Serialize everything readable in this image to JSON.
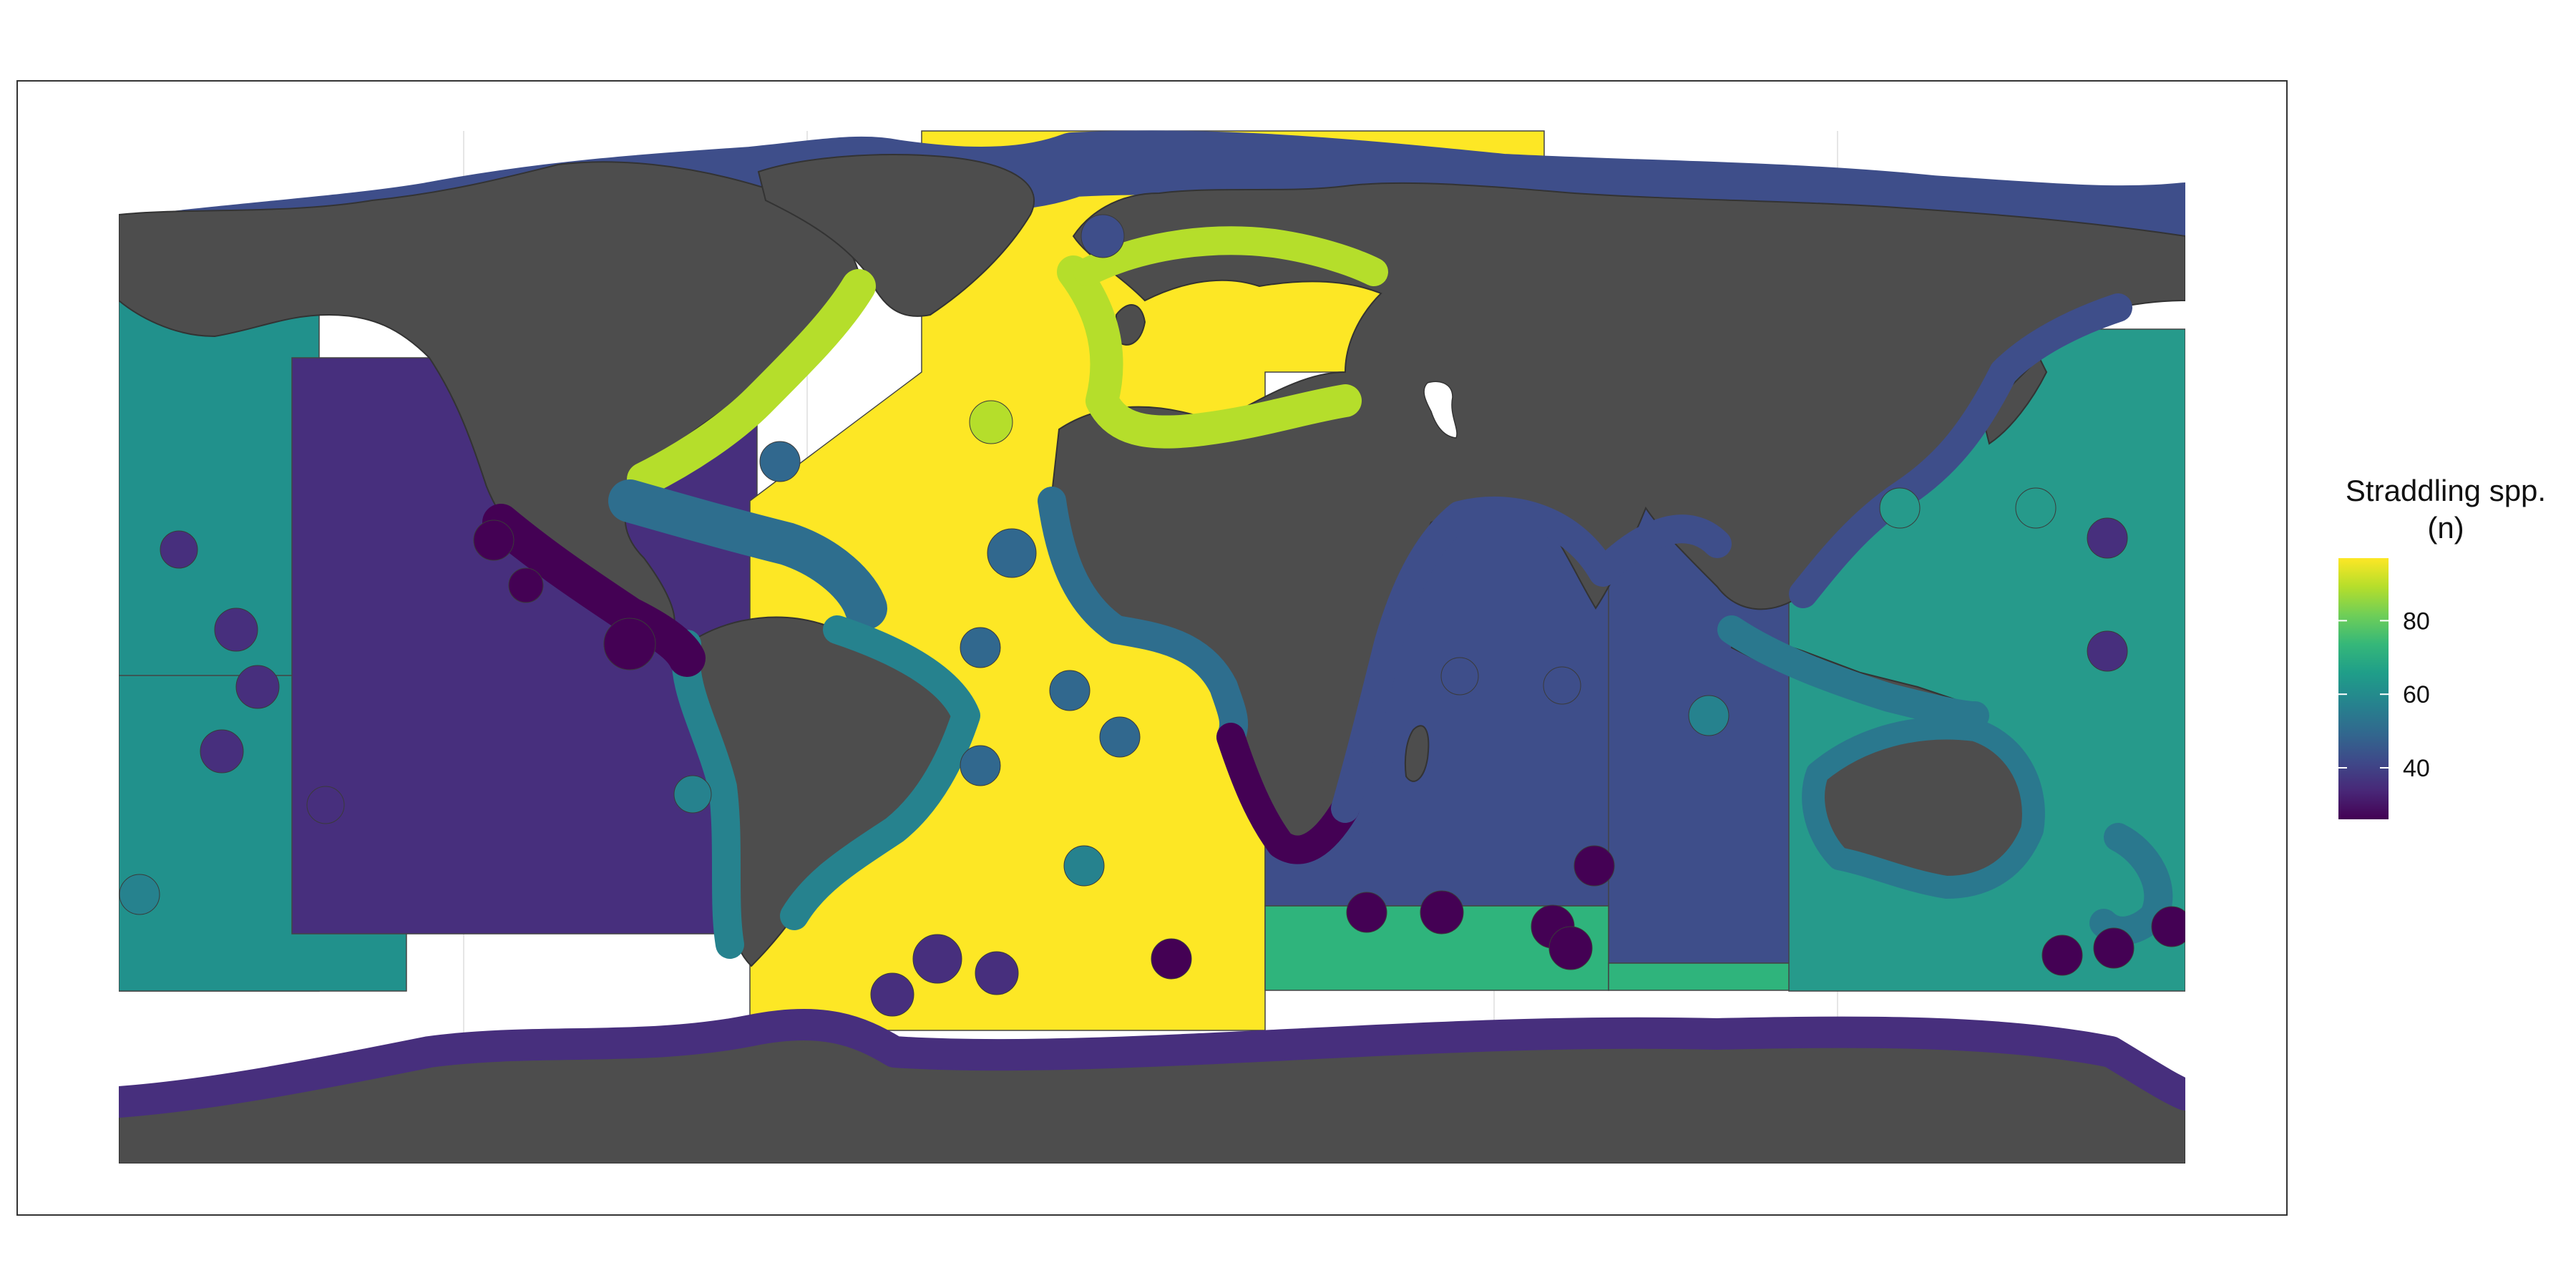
{
  "legend": {
    "title_line1": "Straddling spp.",
    "title_line2": "(n)",
    "ticks": [
      "40",
      "60",
      "80"
    ],
    "tick_values": [
      40,
      60,
      80
    ],
    "range": [
      26,
      97
    ],
    "colormap": "viridis"
  },
  "colors": {
    "land": "#4d4d4d",
    "lake": "#ffffff",
    "frame": "#333333",
    "gridline": "#e5e5e5",
    "viridis_stops": [
      "#440154",
      "#482878",
      "#3e4989",
      "#31688e",
      "#26828e",
      "#1f9e89",
      "#35b779",
      "#6ece58",
      "#b5de2b",
      "#fde725"
    ]
  },
  "map": {
    "type": "world choropleth of high-seas regions and coastal zones",
    "regions": [
      {
        "name": "north-atlantic",
        "value": 97
      },
      {
        "name": "central-south-atlantic",
        "value": 97
      },
      {
        "name": "eastern-central-pacific",
        "value": 32
      },
      {
        "name": "north-pacific-west",
        "value": 62
      },
      {
        "name": "western-central-pacific",
        "value": 62
      },
      {
        "name": "south-pacific",
        "value": 62
      },
      {
        "name": "western-indian-ocean",
        "value": 45
      },
      {
        "name": "eastern-indian-ocean",
        "value": 45
      },
      {
        "name": "southern-indian-band",
        "value": 66
      },
      {
        "name": "southern-pacific-band",
        "value": 66
      }
    ],
    "coastal_zones": [
      {
        "name": "arctic-coast",
        "value": 44
      },
      {
        "name": "north-america-atlantic-coast",
        "value": 88
      },
      {
        "name": "europe-mediterranean-coast",
        "value": 88
      },
      {
        "name": "caribbean-coast",
        "value": 53
      },
      {
        "name": "south-america-coast",
        "value": 57
      },
      {
        "name": "central-america-pacific-coast",
        "value": 26
      },
      {
        "name": "west-africa-coast",
        "value": 53
      },
      {
        "name": "southwest-africa-coast",
        "value": 30
      },
      {
        "name": "indian-ocean-coast",
        "value": 45
      },
      {
        "name": "southeast-asia-coast",
        "value": 59
      },
      {
        "name": "australia-coast",
        "value": 57
      },
      {
        "name": "antarctic-coast",
        "value": 33
      }
    ]
  }
}
